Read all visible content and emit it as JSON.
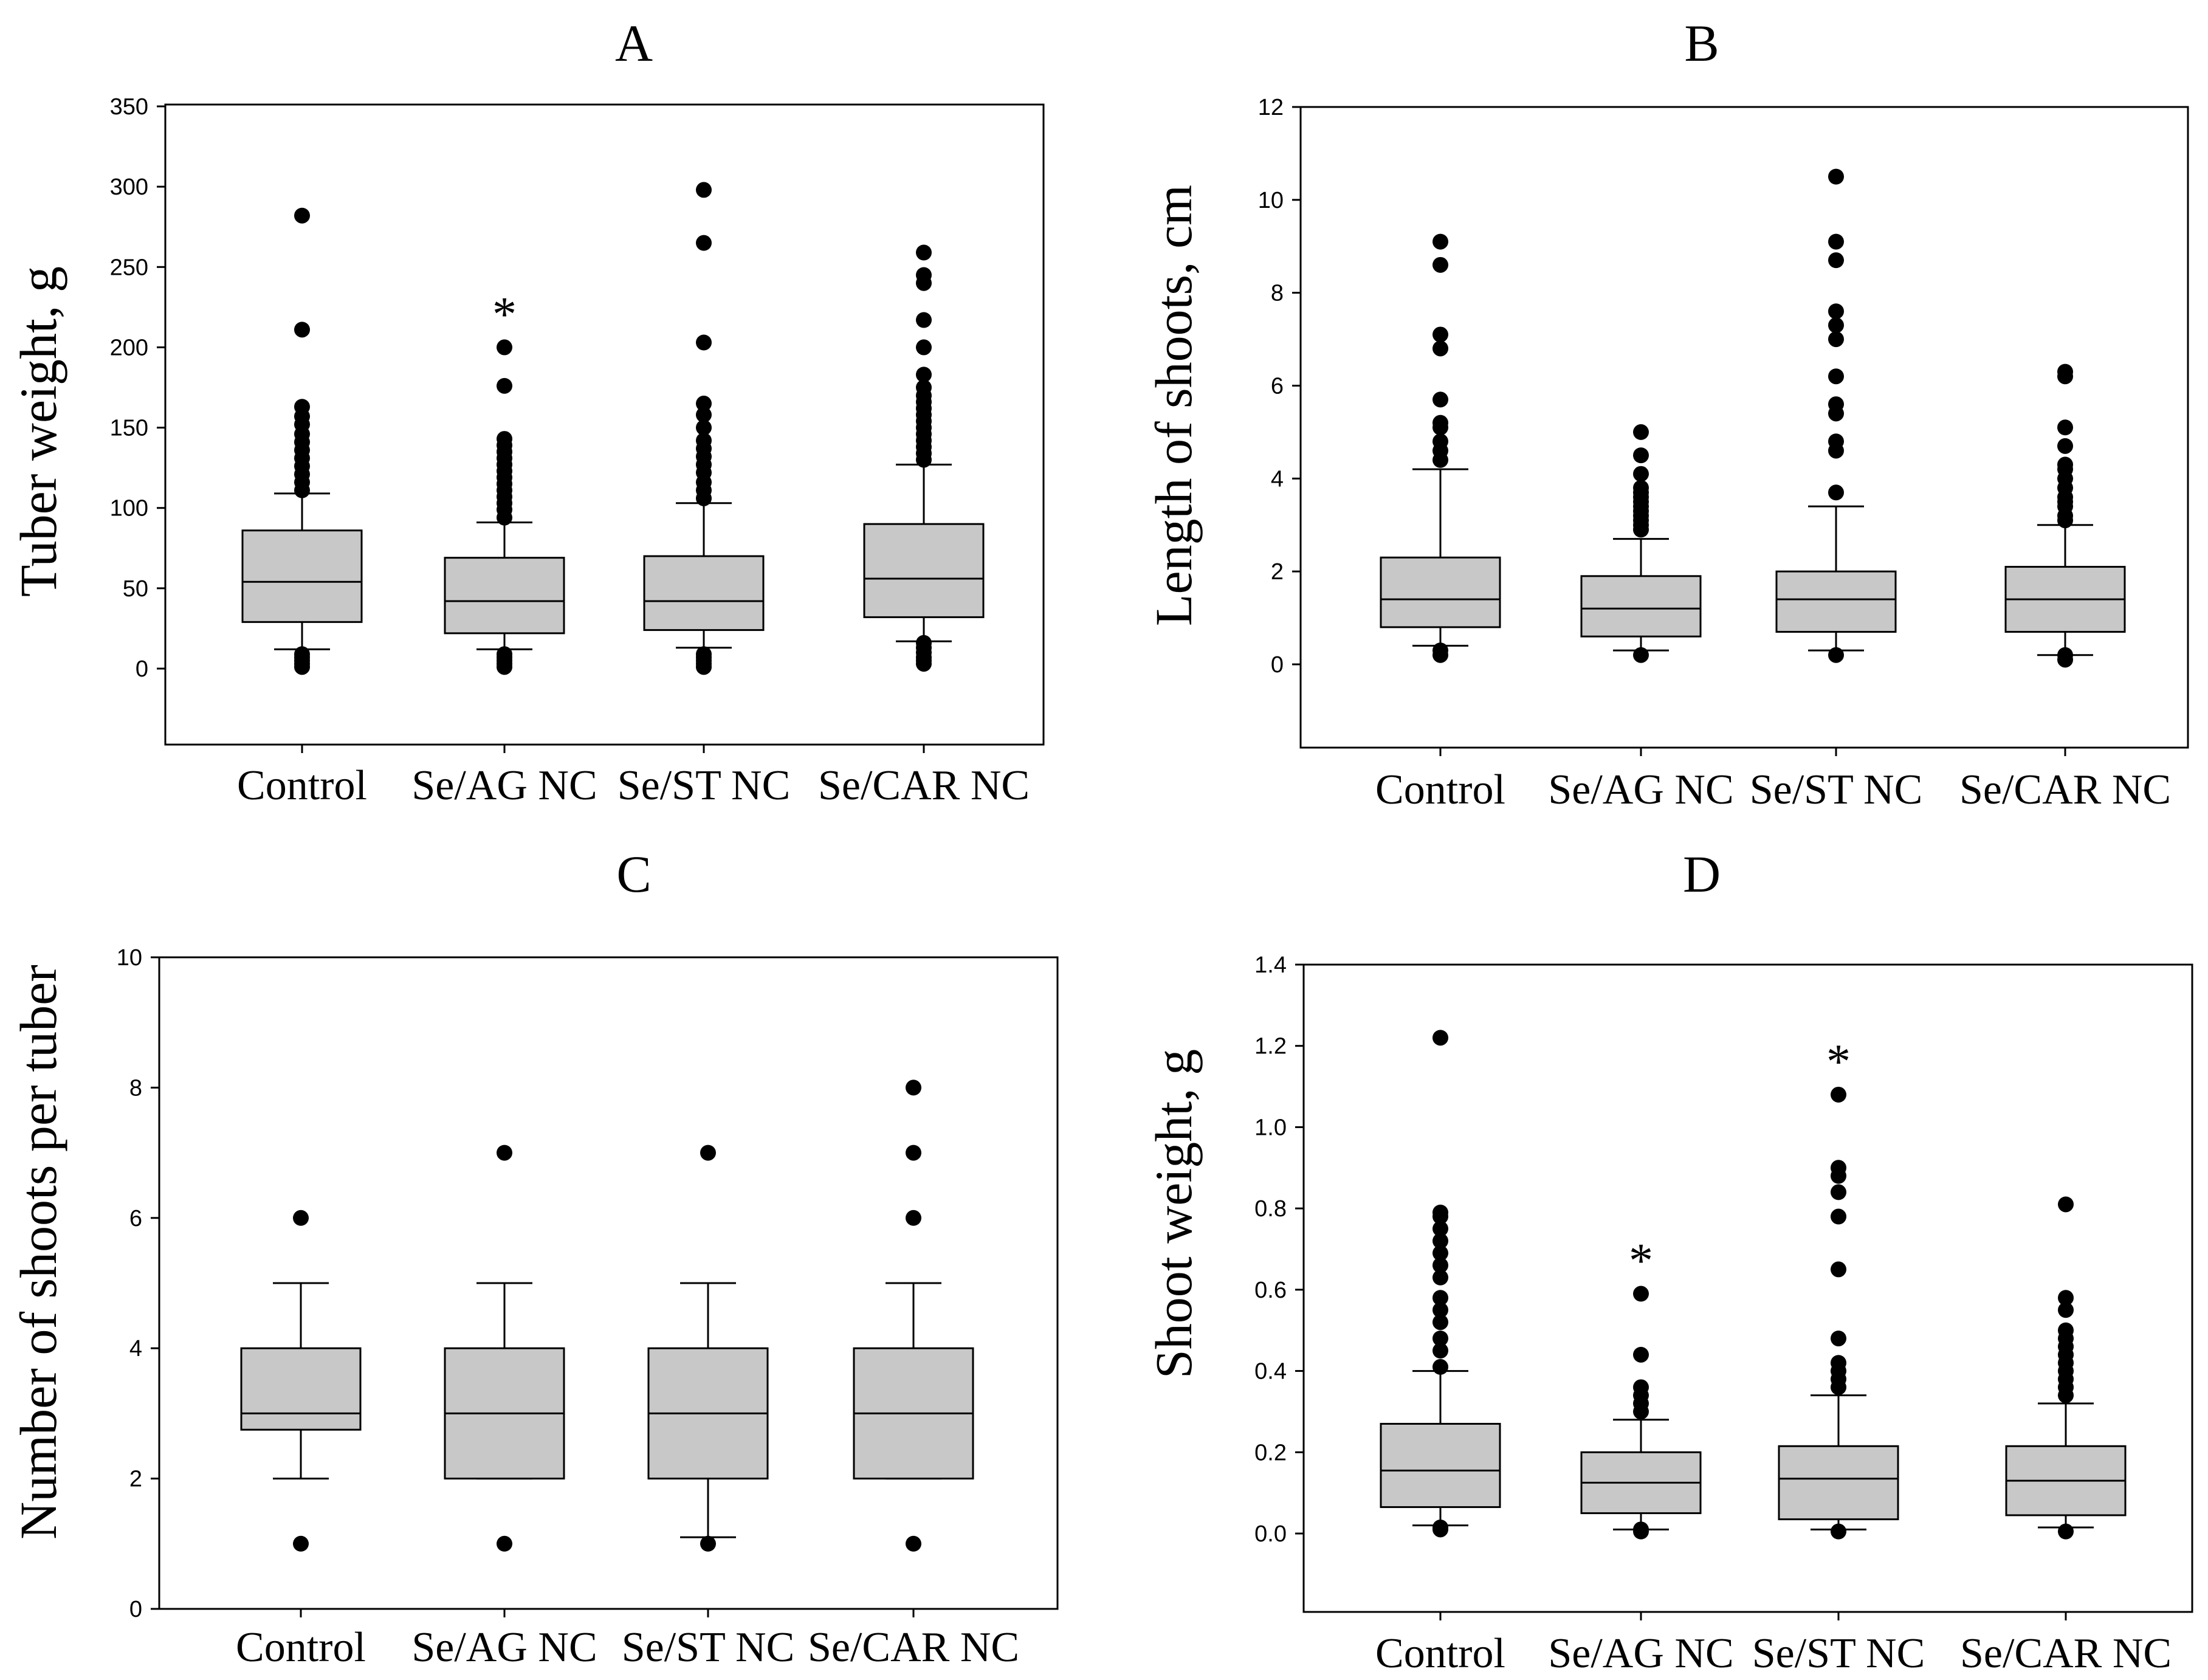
{
  "figure": {
    "background": "#ffffff",
    "box_fill": "#c8c8c8",
    "marker_color": "#000000"
  },
  "chart_data": [
    {
      "panel": "A",
      "type": "boxplot",
      "title": "A",
      "xlabel": "",
      "ylabel": "Tuber weight, g",
      "ylim": [
        -45,
        350
      ],
      "yticks": [
        0,
        50,
        100,
        150,
        200,
        250,
        300,
        350
      ],
      "ytick_labels": [
        "0",
        "50",
        "100",
        "150",
        "200",
        "250",
        "300",
        "350"
      ],
      "categories": [
        "Control",
        "Se/AG NC",
        "Se/ST NC",
        "Se/CAR NC"
      ],
      "boxes": [
        {
          "name": "Control",
          "whisker_low": 12,
          "q1": 29,
          "median": 54,
          "q3": 86,
          "whisker_high": 109,
          "outliers": [
            1,
            3,
            5,
            7,
            9,
            111,
            116,
            121,
            126,
            131,
            136,
            141,
            146,
            152,
            157,
            163,
            211,
            282
          ],
          "marker": ""
        },
        {
          "name": "Se/AG NC",
          "whisker_low": 12,
          "q1": 22,
          "median": 42,
          "q3": 69,
          "whisker_high": 91,
          "outliers": [
            1,
            3,
            5,
            7,
            9,
            94,
            99,
            103,
            107,
            111,
            115,
            119,
            123,
            127,
            131,
            135,
            139,
            143,
            176,
            200
          ],
          "marker": "*"
        },
        {
          "name": "Se/ST NC",
          "whisker_low": 13,
          "q1": 24,
          "median": 42,
          "q3": 70,
          "whisker_high": 103,
          "outliers": [
            1,
            3,
            5,
            7,
            9,
            106,
            111,
            116,
            122,
            127,
            132,
            137,
            142,
            150,
            158,
            165,
            203,
            265,
            298
          ],
          "marker": ""
        },
        {
          "name": "Se/CAR NC",
          "whisker_low": 17,
          "q1": 32,
          "median": 56,
          "q3": 90,
          "whisker_high": 127,
          "outliers": [
            3,
            5,
            7,
            10,
            13,
            16,
            130,
            134,
            138,
            142,
            146,
            150,
            154,
            158,
            162,
            166,
            170,
            175,
            183,
            200,
            217,
            240,
            245,
            259
          ],
          "marker": ""
        }
      ]
    },
    {
      "panel": "B",
      "type": "boxplot",
      "title": "B",
      "xlabel": "",
      "ylabel": "Length of shoots, cm",
      "ylim": [
        -1.8,
        12
      ],
      "yticks": [
        0,
        2,
        4,
        6,
        8,
        10,
        12
      ],
      "ytick_labels": [
        "0",
        "2",
        "4",
        "6",
        "8",
        "10",
        "12"
      ],
      "categories": [
        "Control",
        "Se/AG NC",
        "Se/ST NC",
        "Se/CAR NC"
      ],
      "boxes": [
        {
          "name": "Control",
          "whisker_low": 0.4,
          "q1": 0.8,
          "median": 1.4,
          "q3": 2.3,
          "whisker_high": 4.2,
          "outliers": [
            0.2,
            0.3,
            4.4,
            4.6,
            4.8,
            5.1,
            5.2,
            5.7,
            6.8,
            7.1,
            8.6,
            9.1
          ],
          "marker": ""
        },
        {
          "name": "Se/AG NC",
          "whisker_low": 0.3,
          "q1": 0.6,
          "median": 1.2,
          "q3": 1.9,
          "whisker_high": 2.7,
          "outliers": [
            0.2,
            2.9,
            3.0,
            3.1,
            3.2,
            3.3,
            3.4,
            3.5,
            3.6,
            3.7,
            3.8,
            4.1,
            4.5,
            5.0
          ],
          "marker": ""
        },
        {
          "name": "Se/ST NC",
          "whisker_low": 0.3,
          "q1": 0.7,
          "median": 1.4,
          "q3": 2.0,
          "whisker_high": 3.4,
          "outliers": [
            0.2,
            3.7,
            4.6,
            4.8,
            5.4,
            5.6,
            6.2,
            7.0,
            7.3,
            7.6,
            8.7,
            9.1,
            10.5
          ],
          "marker": ""
        },
        {
          "name": "Se/CAR NC",
          "whisker_low": 0.2,
          "q1": 0.7,
          "median": 1.4,
          "q3": 2.1,
          "whisker_high": 3.0,
          "outliers": [
            0.1,
            0.2,
            3.1,
            3.2,
            3.4,
            3.5,
            3.6,
            3.8,
            4.0,
            4.2,
            4.3,
            4.7,
            5.1,
            6.2,
            6.3
          ],
          "marker": ""
        }
      ]
    },
    {
      "panel": "C",
      "type": "boxplot",
      "title": "C",
      "xlabel": "",
      "ylabel": "Number of shoots per tuber",
      "ylim": [
        0,
        10
      ],
      "yticks": [
        0,
        2,
        4,
        6,
        8,
        10
      ],
      "ytick_labels": [
        "0",
        "2",
        "4",
        "6",
        "8",
        "10"
      ],
      "categories": [
        "Control",
        "Se/AG NC",
        "Se/ST NC",
        "Se/CAR NC"
      ],
      "boxes": [
        {
          "name": "Control",
          "whisker_low": 2,
          "q1": 2.75,
          "median": 3,
          "q3": 4,
          "whisker_high": 5,
          "outliers": [
            1,
            6
          ],
          "marker": ""
        },
        {
          "name": "Se/AG NC",
          "whisker_low": 2,
          "q1": 2,
          "median": 3,
          "q3": 4,
          "whisker_high": 5,
          "outliers": [
            1,
            7
          ],
          "marker": ""
        },
        {
          "name": "Se/ST NC",
          "whisker_low": 1.1,
          "q1": 2,
          "median": 3,
          "q3": 4,
          "whisker_high": 5,
          "outliers": [
            1,
            7
          ],
          "marker": ""
        },
        {
          "name": "Se/CAR NC",
          "whisker_low": 2,
          "q1": 2,
          "median": 3,
          "q3": 4,
          "whisker_high": 5,
          "outliers": [
            1,
            6,
            7,
            8
          ],
          "marker": ""
        }
      ]
    },
    {
      "panel": "D",
      "type": "boxplot",
      "title": "D",
      "xlabel": "",
      "ylabel": "Shoot weight, g",
      "ylim": [
        -0.18,
        1.4
      ],
      "yticks": [
        0.0,
        0.2,
        0.4,
        0.6,
        0.8,
        1.0,
        1.2,
        1.4
      ],
      "ytick_labels": [
        "0.0",
        "0.2",
        "0.4",
        "0.6",
        "0.8",
        "1.0",
        "1.2",
        "1.4"
      ],
      "categories": [
        "Control",
        "Se/AG NC",
        "Se/ST NC",
        "Se/CAR NC"
      ],
      "boxes": [
        {
          "name": "Control",
          "whisker_low": 0.02,
          "q1": 0.065,
          "median": 0.155,
          "q3": 0.27,
          "whisker_high": 0.4,
          "outliers": [
            0.01,
            0.015,
            0.41,
            0.45,
            0.48,
            0.52,
            0.55,
            0.58,
            0.63,
            0.66,
            0.69,
            0.72,
            0.75,
            0.78,
            0.79,
            1.22
          ],
          "marker": ""
        },
        {
          "name": "Se/AG NC",
          "whisker_low": 0.01,
          "q1": 0.05,
          "median": 0.125,
          "q3": 0.2,
          "whisker_high": 0.28,
          "outliers": [
            0.005,
            0.01,
            0.3,
            0.32,
            0.34,
            0.36,
            0.44,
            0.59
          ],
          "marker": "*"
        },
        {
          "name": "Se/ST NC",
          "whisker_low": 0.01,
          "q1": 0.035,
          "median": 0.135,
          "q3": 0.215,
          "whisker_high": 0.34,
          "outliers": [
            0.005,
            0.36,
            0.38,
            0.4,
            0.42,
            0.48,
            0.65,
            0.78,
            0.84,
            0.88,
            0.9,
            1.08
          ],
          "marker": "*"
        },
        {
          "name": "Se/CAR NC",
          "whisker_low": 0.015,
          "q1": 0.045,
          "median": 0.13,
          "q3": 0.215,
          "whisker_high": 0.32,
          "outliers": [
            0.005,
            0.34,
            0.36,
            0.38,
            0.4,
            0.42,
            0.44,
            0.46,
            0.48,
            0.5,
            0.55,
            0.58,
            0.81
          ],
          "marker": ""
        }
      ]
    }
  ]
}
